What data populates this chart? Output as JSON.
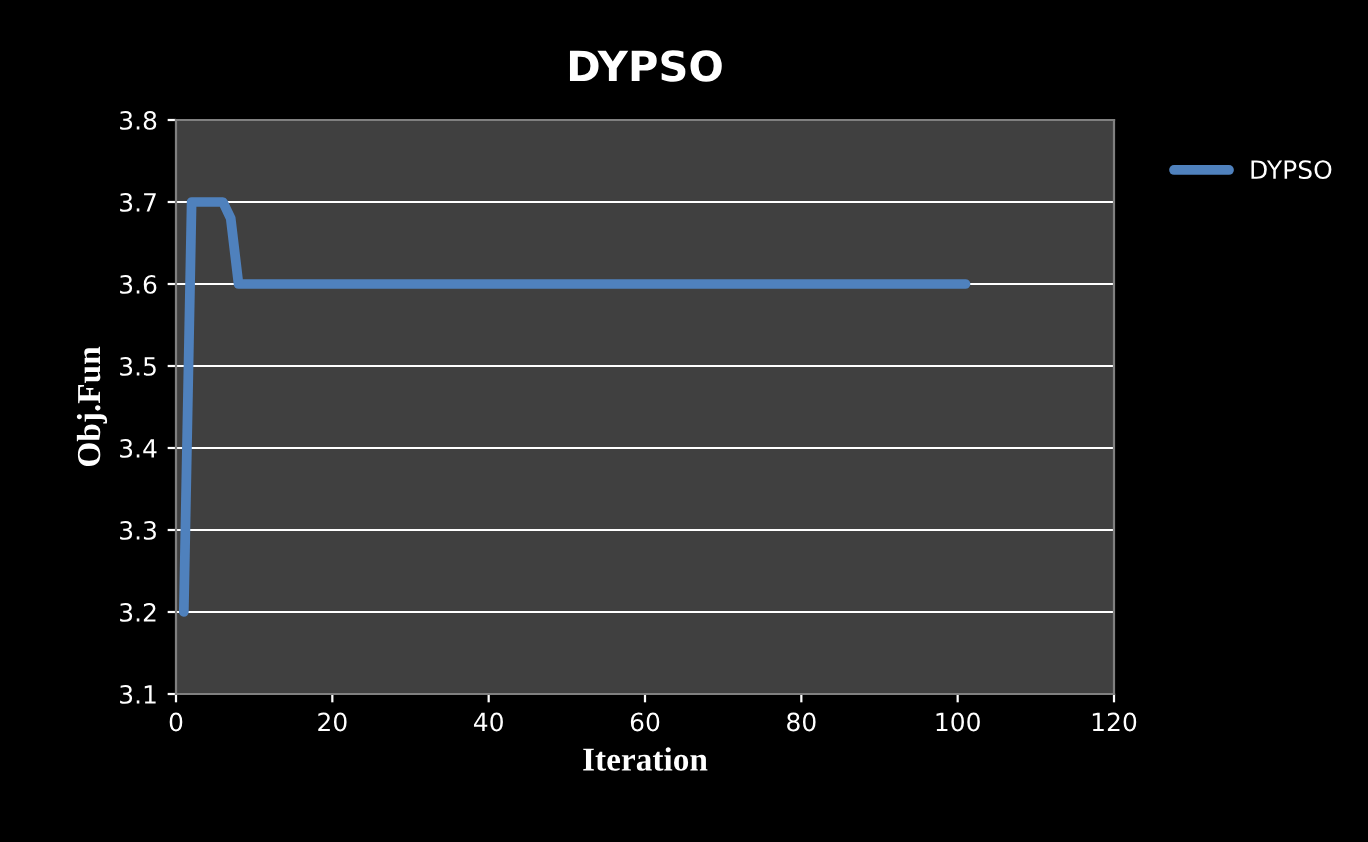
{
  "chart_data": {
    "type": "line",
    "title": "DYPSO",
    "xlabel": "Iteration",
    "ylabel": "Obj.Fun",
    "x": [
      1,
      2,
      6,
      7,
      8,
      101
    ],
    "series": [
      {
        "name": "DYPSO",
        "color": "#4f81bd",
        "values": [
          3.2,
          3.7,
          3.7,
          3.68,
          3.6,
          3.6
        ]
      }
    ],
    "xlim": [
      0,
      120
    ],
    "xticks": [
      0,
      20,
      40,
      60,
      80,
      100,
      120
    ],
    "ylim": [
      3.1,
      3.8
    ],
    "yticks": [
      3.1,
      3.2,
      3.3,
      3.4,
      3.5,
      3.6,
      3.7,
      3.8
    ],
    "grid": "y",
    "legend": "right",
    "marker": "none",
    "line_style": "solid"
  }
}
